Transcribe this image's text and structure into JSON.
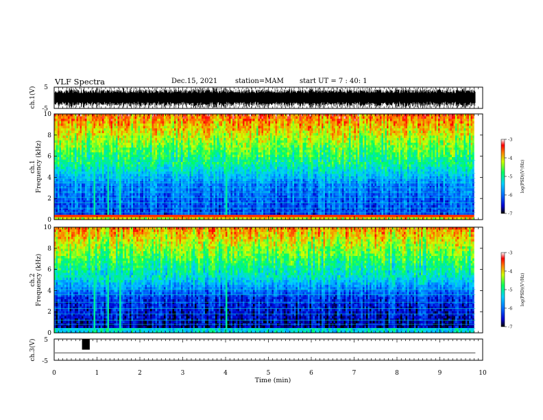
{
  "header": {
    "title": "VLF Spectra",
    "date": "Dec.15, 2021",
    "station": "station=MAM",
    "start": "start UT =  7 : 40: 1"
  },
  "chart_data": [
    {
      "type": "line",
      "panel": "ch1-waveform",
      "ylabel": "ch.1(V)",
      "ylim": [
        -5,
        5
      ],
      "yticks": [
        "5",
        "-5"
      ],
      "xlim": [
        0,
        10
      ]
    },
    {
      "type": "heatmap",
      "panel": "ch1-spectrogram",
      "ylabel_line1": "ch.1",
      "ylabel_line2": "Frequency (kHz)",
      "ylim": [
        0,
        10
      ],
      "yticks": [
        "0",
        "2",
        "4",
        "6",
        "8",
        "10"
      ],
      "xlim": [
        0,
        10
      ],
      "data_end_min": 9.83,
      "colorbar": {
        "label": "log(PSD)(V²/Hz)",
        "range": [
          -7,
          -3
        ],
        "ticks": [
          "-3",
          "-4",
          "-5",
          "-6",
          "-7"
        ],
        "colormap": [
          "#000000",
          "#0000d0",
          "#0070ff",
          "#00d0ff",
          "#00ff60",
          "#d0ff00",
          "#ff8000",
          "#ff0000",
          "#ffffff"
        ]
      }
    },
    {
      "type": "heatmap",
      "panel": "ch2-spectrogram",
      "ylabel_line1": "ch.2",
      "ylabel_line2": "Frequency (kHz)",
      "ylim": [
        0,
        10
      ],
      "yticks": [
        "0",
        "2",
        "4",
        "6",
        "8",
        "10"
      ],
      "xlim": [
        0,
        10
      ],
      "data_end_min": 9.83,
      "colorbar": {
        "label": "log(PSD)(V²/Hz)",
        "range": [
          -7,
          -3
        ],
        "ticks": [
          "-3",
          "-4",
          "-5",
          "-6",
          "-7"
        ]
      }
    },
    {
      "type": "line",
      "panel": "ch3-waveform",
      "ylabel": "ch.3(V)",
      "ylim": [
        -5,
        5
      ],
      "yticks": [
        "5",
        "-5"
      ],
      "xlim": [
        0,
        10
      ],
      "xlabel": "Time (min)",
      "xticks": [
        "0",
        "1",
        "2",
        "3",
        "4",
        "5",
        "6",
        "7",
        "8",
        "9",
        "10"
      ],
      "baseline_v": -1.5,
      "pulse": {
        "start_min": 0.65,
        "end_min": 0.83,
        "high_v": 5,
        "low_v": 0
      }
    }
  ]
}
